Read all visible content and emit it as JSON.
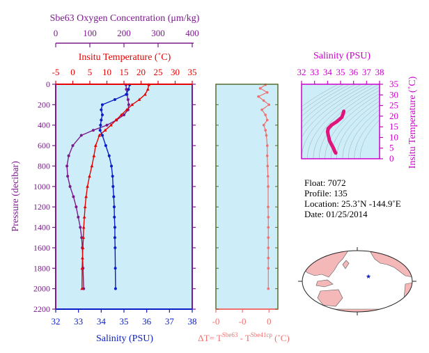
{
  "panel_left": {
    "oxygen_axis_title": "Sbe63 Oxygen Concentration (μm/kg)",
    "temp_axis_title": "Insitu Temperature (˚C)",
    "pressure_axis_title": "Pressure (decibar)",
    "salinity_axis_title": "Salinity (PSU)"
  },
  "panel_middle": {
    "xlabel_main": "ΔT= T",
    "xlabel_sup1": "Sbe63",
    "xlabel_mid": " - T",
    "xlabel_sup2": "Sbe41cp",
    "xlabel_unit": " (˚C)"
  },
  "panel_ts": {
    "salinity_axis_title": "Salinity (PSU)",
    "temp_axis_title": "Insitu Temperature (˚C)"
  },
  "float_info": {
    "float_line": "Float:  7072",
    "profile_line": "Profile:  135",
    "location_line": "Location:  25.3˚N  -144.9˚E",
    "date_line": "Date:  01/25/2014"
  },
  "colors": {
    "plot_bg": "#cdeef8",
    "oxygen": "#7b1a8c",
    "temperature": "#e60000",
    "salinity": "#0a1ec8",
    "delta_t": "#f07070",
    "ts_curve": "#e0147a",
    "ts_axis": "#cc00cc",
    "middle_frame": "#556b2f",
    "map_land": "#f4b8b8",
    "map_ocean": "#ffffff"
  },
  "chart_data": [
    {
      "type": "line",
      "name": "profiles",
      "ylim": [
        0,
        2200
      ],
      "y_ticks": [
        0,
        200,
        400,
        600,
        800,
        1000,
        1200,
        1400,
        1600,
        1800,
        2000,
        2200
      ],
      "y_inverted": true,
      "axes": {
        "oxygen": {
          "lim": [
            0,
            400
          ],
          "ticks": [
            0,
            100,
            200,
            300,
            400
          ]
        },
        "temperature": {
          "lim": [
            -5,
            35
          ],
          "ticks": [
            -5,
            0,
            5,
            10,
            15,
            20,
            25,
            30,
            35
          ]
        },
        "salinity": {
          "lim": [
            32,
            38
          ],
          "ticks": [
            32,
            33,
            34,
            35,
            36,
            37,
            38
          ]
        }
      },
      "series": [
        {
          "key": "oxygen",
          "axis": "oxygen",
          "x": [
            206,
            207,
            209,
            212,
            214,
            212,
            200,
            178,
            150,
            110,
            75,
            50,
            38,
            33,
            35,
            42,
            52,
            60,
            66,
            72,
            76,
            78,
            80,
            82
          ],
          "y": [
            5,
            50,
            100,
            150,
            200,
            250,
            300,
            350,
            400,
            450,
            500,
            600,
            700,
            800,
            900,
            1000,
            1100,
            1200,
            1300,
            1400,
            1500,
            1600,
            1800,
            2000
          ]
        },
        {
          "key": "temperature",
          "axis": "temperature",
          "x": [
            22.3,
            22.0,
            21.2,
            19.5,
            17.4,
            15.8,
            14.2,
            12.7,
            11.2,
            9.5,
            7.8,
            6.7,
            6.2,
            5.6,
            4.9,
            4.3,
            3.9,
            3.6,
            3.4,
            3.2,
            3.1,
            2.95,
            2.85,
            2.75,
            2.7
          ],
          "y": [
            5,
            50,
            100,
            150,
            200,
            250,
            300,
            350,
            400,
            450,
            500,
            600,
            700,
            800,
            900,
            1000,
            1100,
            1200,
            1300,
            1400,
            1500,
            1600,
            1700,
            1800,
            2000
          ]
        },
        {
          "key": "salinity",
          "axis": "salinity",
          "x": [
            35.25,
            35.2,
            35.1,
            34.6,
            34.05,
            34.0,
            34.05,
            34.0,
            33.97,
            33.95,
            34.05,
            34.2,
            34.35,
            34.45,
            34.5,
            34.52,
            34.55,
            34.57,
            34.58,
            34.6,
            34.6,
            34.61,
            34.62,
            34.63
          ],
          "y": [
            5,
            50,
            100,
            150,
            200,
            250,
            300,
            350,
            400,
            450,
            500,
            600,
            700,
            800,
            900,
            1000,
            1100,
            1200,
            1300,
            1400,
            1500,
            1600,
            1800,
            2000
          ]
        }
      ],
      "x_tick_labels_bottom": [
        "32",
        "33",
        "34",
        "35",
        "36",
        "37",
        "38"
      ]
    },
    {
      "type": "line",
      "name": "delta_t",
      "xlim": [
        -0.3,
        0.05
      ],
      "x_ticks": [
        -0.3,
        -0.15,
        0
      ],
      "x_tick_labels": [
        "-0",
        "-0",
        "0"
      ],
      "ylim": [
        0,
        2200
      ],
      "y_inverted": true,
      "series": [
        {
          "key": "delta_t",
          "x": [
            -0.02,
            -0.05,
            -0.01,
            -0.06,
            -0.03,
            0.0,
            -0.04,
            -0.02,
            -0.01,
            -0.03,
            -0.02,
            -0.015,
            -0.01,
            -0.01,
            -0.008,
            -0.006,
            -0.005,
            -0.005,
            -0.004,
            -0.004,
            -0.004,
            -0.004,
            -0.004,
            -0.004,
            -0.004
          ],
          "y": [
            5,
            40,
            80,
            120,
            160,
            200,
            250,
            300,
            350,
            400,
            450,
            500,
            600,
            700,
            800,
            900,
            1000,
            1200,
            1300,
            1400,
            1500,
            1600,
            1700,
            1800,
            2000
          ]
        }
      ]
    },
    {
      "type": "line",
      "name": "t_s_diagram",
      "xlim": [
        32,
        38
      ],
      "x_ticks": [
        32,
        33,
        34,
        35,
        36,
        37,
        38
      ],
      "ylim": [
        0,
        35
      ],
      "y_ticks": [
        0,
        5,
        10,
        15,
        20,
        25,
        30,
        35
      ],
      "series": [
        {
          "key": "ts",
          "x": [
            34.63,
            34.6,
            34.55,
            34.5,
            34.4,
            34.3,
            34.15,
            34.05,
            34.0,
            34.05,
            34.3,
            34.7,
            35.1,
            35.2,
            35.25
          ],
          "y": [
            2.7,
            3.0,
            3.5,
            4.3,
            5.6,
            6.7,
            8.5,
            11.2,
            12.7,
            14.2,
            15.8,
            17.4,
            19.5,
            21.2,
            22.3
          ]
        }
      ]
    }
  ]
}
